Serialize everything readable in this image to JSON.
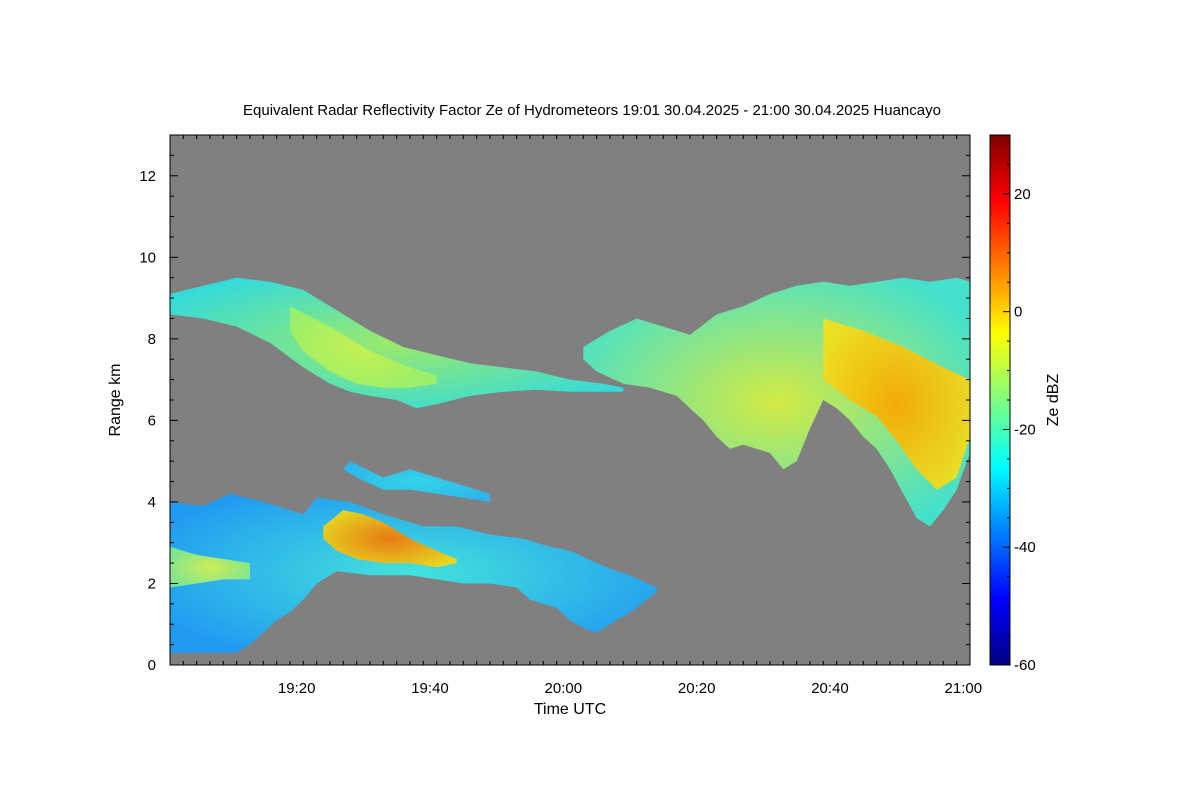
{
  "chart_data": {
    "type": "heatmap",
    "title": "Equivalent Radar Reflectivity Factor Ze of Hydrometeors   19:01 30.04.2025 - 21:00 30.04.2025 Huancayo",
    "xlabel": "Time UTC",
    "ylabel": "Range km",
    "colorbar_label": "Ze dBZ",
    "background_color": "#808080",
    "xlim_minutes": [
      0,
      120
    ],
    "ylim": [
      0,
      13
    ],
    "x_ticks": [
      {
        "value": 19,
        "label": "19:20"
      },
      {
        "value": 39,
        "label": "19:40"
      },
      {
        "value": 59,
        "label": "20:00"
      },
      {
        "value": 79,
        "label": "20:20"
      },
      {
        "value": 99,
        "label": "20:40"
      },
      {
        "value": 119,
        "label": "21:00"
      }
    ],
    "y_ticks": [
      {
        "value": 0,
        "label": "0"
      },
      {
        "value": 2,
        "label": "2"
      },
      {
        "value": 4,
        "label": "4"
      },
      {
        "value": 6,
        "label": "6"
      },
      {
        "value": 8,
        "label": "8"
      },
      {
        "value": 10,
        "label": "10"
      },
      {
        "value": 12,
        "label": "12"
      }
    ],
    "colorbar": {
      "range": [
        -60,
        30
      ],
      "ticks": [
        {
          "value": 20,
          "label": "20"
        },
        {
          "value": 0,
          "label": "0"
        },
        {
          "value": -20,
          "label": "-20"
        },
        {
          "value": -40,
          "label": "-40"
        },
        {
          "value": -60,
          "label": "-60"
        }
      ],
      "colormap": [
        "#00007f",
        "#0000ff",
        "#007fff",
        "#00ffff",
        "#7fff7f",
        "#ffff00",
        "#ff7f00",
        "#ff0000",
        "#7f0000"
      ]
    },
    "echo_regions": [
      {
        "name": "upper-cirrus-west",
        "base_color": "#30e0e0",
        "core_color": "#9cf068",
        "top": [
          [
            0,
            9.1
          ],
          [
            5,
            9.3
          ],
          [
            10,
            9.5
          ],
          [
            15,
            9.4
          ],
          [
            20,
            9.2
          ],
          [
            25,
            8.7
          ],
          [
            30,
            8.2
          ],
          [
            35,
            7.8
          ],
          [
            40,
            7.6
          ],
          [
            45,
            7.4
          ],
          [
            50,
            7.3
          ],
          [
            55,
            7.2
          ],
          [
            60,
            7.0
          ],
          [
            65,
            6.9
          ],
          [
            68,
            6.8
          ]
        ],
        "bottom": [
          [
            68,
            6.7
          ],
          [
            65,
            6.7
          ],
          [
            60,
            6.7
          ],
          [
            55,
            6.75
          ],
          [
            50,
            6.7
          ],
          [
            45,
            6.6
          ],
          [
            40,
            6.4
          ],
          [
            37,
            6.3
          ],
          [
            34,
            6.5
          ],
          [
            30,
            6.6
          ],
          [
            27,
            6.7
          ],
          [
            24,
            6.9
          ],
          [
            20,
            7.3
          ],
          [
            15,
            7.9
          ],
          [
            10,
            8.3
          ],
          [
            5,
            8.5
          ],
          [
            0,
            8.6
          ]
        ]
      },
      {
        "name": "upper-cirrus-west-core",
        "base_color": "#9cf068",
        "core_color": "#c8f050",
        "top": [
          [
            18,
            8.8
          ],
          [
            24,
            8.3
          ],
          [
            30,
            7.7
          ],
          [
            36,
            7.3
          ],
          [
            40,
            7.1
          ]
        ],
        "bottom": [
          [
            40,
            6.9
          ],
          [
            36,
            6.8
          ],
          [
            32,
            6.8
          ],
          [
            28,
            6.9
          ],
          [
            24,
            7.2
          ],
          [
            20,
            7.7
          ],
          [
            18,
            8.2
          ]
        ]
      },
      {
        "name": "upper-cloud-east",
        "base_color": "#40e6d0",
        "core_color": "#d8f040",
        "top": [
          [
            62,
            7.8
          ],
          [
            66,
            8.2
          ],
          [
            70,
            8.5
          ],
          [
            74,
            8.3
          ],
          [
            78,
            8.1
          ],
          [
            82,
            8.6
          ],
          [
            86,
            8.8
          ],
          [
            90,
            9.1
          ],
          [
            94,
            9.3
          ],
          [
            98,
            9.4
          ],
          [
            102,
            9.3
          ],
          [
            106,
            9.4
          ],
          [
            110,
            9.5
          ],
          [
            114,
            9.4
          ],
          [
            118,
            9.5
          ],
          [
            120,
            9.4
          ]
        ],
        "bottom": [
          [
            120,
            5.2
          ],
          [
            118,
            4.3
          ],
          [
            116,
            3.8
          ],
          [
            114,
            3.4
          ],
          [
            112,
            3.6
          ],
          [
            110,
            4.2
          ],
          [
            108,
            4.8
          ],
          [
            106,
            5.3
          ],
          [
            104,
            5.6
          ],
          [
            102,
            6.0
          ],
          [
            100,
            6.3
          ],
          [
            98,
            6.5
          ],
          [
            96,
            5.8
          ],
          [
            94,
            5.0
          ],
          [
            92,
            4.8
          ],
          [
            90,
            5.2
          ],
          [
            88,
            5.3
          ],
          [
            86,
            5.4
          ],
          [
            84,
            5.3
          ],
          [
            82,
            5.6
          ],
          [
            80,
            6.0
          ],
          [
            78,
            6.3
          ],
          [
            76,
            6.6
          ],
          [
            72,
            6.8
          ],
          [
            68,
            6.9
          ],
          [
            64,
            7.2
          ],
          [
            62,
            7.5
          ]
        ]
      },
      {
        "name": "upper-cloud-east-core",
        "base_color": "#f0e020",
        "core_color": "#f8a800",
        "top": [
          [
            98,
            8.5
          ],
          [
            104,
            8.2
          ],
          [
            110,
            7.8
          ],
          [
            116,
            7.3
          ],
          [
            120,
            7.0
          ]
        ],
        "bottom": [
          [
            120,
            5.6
          ],
          [
            118,
            4.6
          ],
          [
            115,
            4.3
          ],
          [
            112,
            4.8
          ],
          [
            109,
            5.5
          ],
          [
            106,
            6.1
          ],
          [
            102,
            6.5
          ],
          [
            98,
            7.0
          ]
        ]
      },
      {
        "name": "mid-streak",
        "base_color": "#28b8f0",
        "core_color": "#30d8f0",
        "top": [
          [
            27,
            5.0
          ],
          [
            32,
            4.6
          ],
          [
            36,
            4.8
          ],
          [
            40,
            4.6
          ],
          [
            44,
            4.4
          ],
          [
            48,
            4.2
          ]
        ],
        "bottom": [
          [
            48,
            4.0
          ],
          [
            44,
            4.1
          ],
          [
            40,
            4.2
          ],
          [
            36,
            4.3
          ],
          [
            32,
            4.3
          ],
          [
            28,
            4.6
          ],
          [
            26,
            4.8
          ]
        ]
      },
      {
        "name": "lower-cloud",
        "base_color": "#1c9cf8",
        "core_color": "#40e8e0",
        "top": [
          [
            0,
            4.0
          ],
          [
            5,
            3.9
          ],
          [
            9,
            4.2
          ],
          [
            14,
            4.0
          ],
          [
            20,
            3.7
          ],
          [
            22,
            4.1
          ],
          [
            27,
            4.0
          ],
          [
            32,
            3.7
          ],
          [
            38,
            3.4
          ],
          [
            43,
            3.4
          ],
          [
            48,
            3.2
          ],
          [
            53,
            3.1
          ],
          [
            57,
            2.9
          ],
          [
            60,
            2.8
          ],
          [
            64,
            2.5
          ],
          [
            67,
            2.3
          ],
          [
            69,
            2.2
          ],
          [
            73,
            1.9
          ]
        ],
        "bottom": [
          [
            73,
            1.8
          ],
          [
            70,
            1.4
          ],
          [
            68,
            1.2
          ],
          [
            66,
            1.0
          ],
          [
            64,
            0.8
          ],
          [
            62,
            0.9
          ],
          [
            60,
            1.1
          ],
          [
            58,
            1.4
          ],
          [
            56,
            1.5
          ],
          [
            54,
            1.6
          ],
          [
            52,
            1.9
          ],
          [
            48,
            2.0
          ],
          [
            44,
            2.0
          ],
          [
            40,
            2.1
          ],
          [
            36,
            2.2
          ],
          [
            30,
            2.2
          ],
          [
            25,
            2.3
          ],
          [
            22,
            2.0
          ],
          [
            20,
            1.6
          ],
          [
            18,
            1.3
          ],
          [
            16,
            1.1
          ],
          [
            14,
            0.8
          ],
          [
            12,
            0.5
          ],
          [
            10,
            0.3
          ],
          [
            0,
            0.3
          ]
        ]
      },
      {
        "name": "lower-cloud-core",
        "base_color": "#f0d818",
        "core_color": "#f07808",
        "top": [
          [
            23,
            3.4
          ],
          [
            26,
            3.8
          ],
          [
            29,
            3.7
          ],
          [
            32,
            3.5
          ],
          [
            36,
            3.1
          ],
          [
            40,
            2.8
          ],
          [
            43,
            2.6
          ]
        ],
        "bottom": [
          [
            43,
            2.5
          ],
          [
            40,
            2.4
          ],
          [
            36,
            2.5
          ],
          [
            32,
            2.5
          ],
          [
            28,
            2.6
          ],
          [
            25,
            2.8
          ],
          [
            23,
            3.1
          ]
        ]
      },
      {
        "name": "lower-left-core",
        "base_color": "#7fe890",
        "core_color": "#d4f050",
        "top": [
          [
            0,
            2.9
          ],
          [
            4,
            2.7
          ],
          [
            8,
            2.6
          ],
          [
            12,
            2.5
          ]
        ],
        "bottom": [
          [
            12,
            2.1
          ],
          [
            8,
            2.1
          ],
          [
            4,
            2.0
          ],
          [
            0,
            1.9
          ]
        ]
      }
    ]
  }
}
